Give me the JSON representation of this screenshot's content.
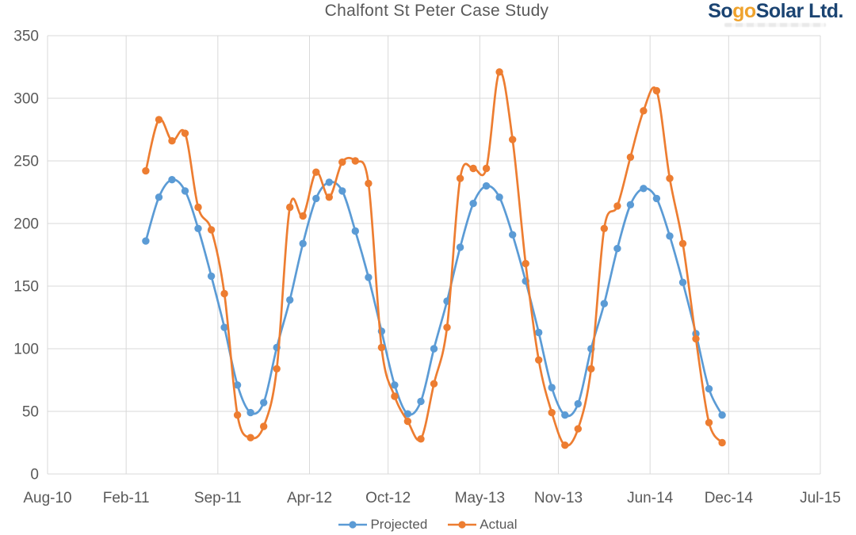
{
  "header": {
    "logo": {
      "part1": "So",
      "part2": "go",
      "part3": "Solar Ltd.",
      "navy_color": "#1B4472",
      "gold_color": "#EFA32E"
    }
  },
  "chart_data": {
    "type": "line",
    "title": "Chalfont St Peter Case Study",
    "xlabel": "",
    "ylabel": "",
    "grid": true,
    "legend_position": "bottom",
    "ylim": [
      0,
      350
    ],
    "y_ticks": [
      0,
      50,
      100,
      150,
      200,
      250,
      300,
      350
    ],
    "x_tick_labels": [
      "Aug-10",
      "Feb-11",
      "Sep-11",
      "Apr-12",
      "Oct-12",
      "May-13",
      "Nov-13",
      "Jun-14",
      "Dec-14",
      "Jul-15"
    ],
    "x_tick_months": [
      0,
      6,
      13,
      20,
      26,
      33,
      39,
      46,
      52,
      59
    ],
    "x_total_months": 59,
    "x_first_point_month": 7.5,
    "axis_text_color": "#595959",
    "gridline_color": "#D9D9D9",
    "categories": [
      "Mar-11",
      "Apr-11",
      "May-11",
      "Jun-11",
      "Jul-11",
      "Aug-11",
      "Sep-11",
      "Oct-11",
      "Nov-11",
      "Dec-11",
      "Jan-12",
      "Feb-12",
      "Mar-12",
      "Apr-12",
      "May-12",
      "Jun-12",
      "Jul-12",
      "Aug-12",
      "Sep-12",
      "Oct-12",
      "Nov-12",
      "Dec-12",
      "Jan-13",
      "Feb-13",
      "Mar-13",
      "Apr-13",
      "May-13",
      "Jun-13",
      "Jul-13",
      "Aug-13",
      "Sep-13",
      "Oct-13",
      "Nov-13",
      "Dec-13",
      "Jan-14",
      "Feb-14",
      "Mar-14",
      "Apr-14",
      "May-14",
      "Jun-14",
      "Jul-14",
      "Aug-14",
      "Sep-14",
      "Oct-14",
      "Nov-14"
    ],
    "series": [
      {
        "name": "Projected",
        "color": "#5B9BD5",
        "values": [
          186,
          221,
          235,
          226,
          196,
          158,
          117,
          71,
          49,
          57,
          101,
          139,
          184,
          220,
          233,
          226,
          194,
          157,
          114,
          71,
          48,
          58,
          100,
          138,
          181,
          216,
          230,
          221,
          191,
          154,
          113,
          69,
          47,
          56,
          100,
          136,
          180,
          215,
          228,
          220,
          190,
          153,
          112,
          68,
          47
        ]
      },
      {
        "name": "Actual",
        "color": "#ED7D31",
        "values": [
          242,
          283,
          266,
          272,
          213,
          195,
          144,
          47,
          29,
          38,
          84,
          213,
          206,
          241,
          221,
          249,
          250,
          232,
          101,
          62,
          42,
          28,
          72,
          117,
          236,
          244,
          244,
          321,
          267,
          168,
          91,
          49,
          23,
          36,
          84,
          196,
          214,
          253,
          290,
          306,
          236,
          184,
          108,
          41,
          25
        ]
      }
    ]
  }
}
